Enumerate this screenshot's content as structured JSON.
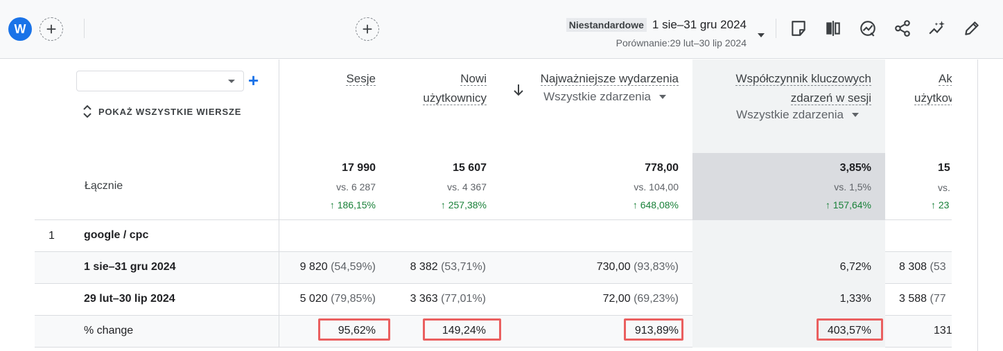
{
  "topbar": {
    "avatar_letter": "W",
    "date_label": "Niestandardowe",
    "date_range": "1 sie–31 gru 2024",
    "comparison": "Porównanie:29 lut–30 lip 2024",
    "icons": [
      "add-circle-icon",
      "note-icon",
      "compare-columns-icon",
      "insights-icon",
      "share-icon",
      "sparkle-trend-icon",
      "edit-icon"
    ]
  },
  "dimension": {
    "select_value": "",
    "show_all_rows": "POKAŻ WSZYSTKIE WIERSZE",
    "total_label": "Łącznie"
  },
  "columns": [
    {
      "title_lines": [
        "Sesje"
      ],
      "sub": "",
      "total": "17 990",
      "vs": "vs. 6 287",
      "change": "↑ 186,15%"
    },
    {
      "title_lines": [
        "Nowi",
        "użytkownicy"
      ],
      "sub": "",
      "total": "15 607",
      "vs": "vs. 4 367",
      "change": "↑ 257,38%"
    },
    {
      "title_lines": [
        "Najważniejsze wydarzenia"
      ],
      "sub": "Wszystkie zdarzenia",
      "total": "778,00",
      "vs": "vs. 104,00",
      "change": "↑ 648,08%"
    },
    {
      "title_lines": [
        "Współczynnik kluczowych",
        "zdarzeń w sesji"
      ],
      "sub": "Wszystkie zdarzenia",
      "total": "3,85%",
      "vs": "vs. 1,5%",
      "change": "↑ 157,64%"
    },
    {
      "title_lines": [
        "Ak",
        "użytkow"
      ],
      "sub": "",
      "total": "15",
      "vs": "vs.",
      "change": "↑ 23"
    }
  ],
  "rows": [
    {
      "num": "1",
      "label": "google / cpc",
      "cells": []
    },
    {
      "num": "",
      "label": "1 sie–31 gru 2024",
      "cells": [
        {
          "v": "9 820",
          "p": "(54,59%)"
        },
        {
          "v": "8 382",
          "p": "(53,71%)"
        },
        {
          "v": "730,00",
          "p": "(93,83%)"
        },
        {
          "v": "6,72%",
          "p": ""
        },
        {
          "v": "8 308",
          "p": "(53"
        }
      ]
    },
    {
      "num": "",
      "label": "29 lut–30 lip 2024",
      "cells": [
        {
          "v": "5 020",
          "p": "(79,85%)"
        },
        {
          "v": "3 363",
          "p": "(77,01%)"
        },
        {
          "v": "72,00",
          "p": "(69,23%)"
        },
        {
          "v": "1,33%",
          "p": ""
        },
        {
          "v": "3 588",
          "p": "(77"
        }
      ]
    },
    {
      "num": "",
      "label": "% change",
      "cells": [
        {
          "v": "95,62%",
          "p": ""
        },
        {
          "v": "149,24%",
          "p": ""
        },
        {
          "v": "913,89%",
          "p": ""
        },
        {
          "v": "403,57%",
          "p": ""
        },
        {
          "v": "131",
          "p": ""
        }
      ]
    }
  ],
  "colors": {
    "accent": "#1a73e8",
    "positive": "#188038",
    "highlight": "#ea5f5f",
    "shaded_column": "#f1f3f4"
  }
}
